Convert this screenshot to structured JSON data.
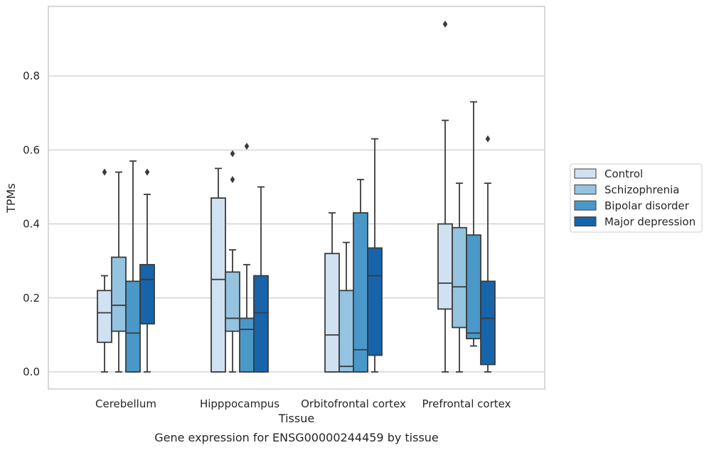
{
  "chart_data": {
    "type": "box",
    "xlabel": "Tissue",
    "ylabel": "TPMs",
    "caption": "Gene expression for ENSG00000244459 by tissue",
    "categories": [
      "Cerebellum",
      "Hipppocampus",
      "Orbitofrontal cortex",
      "Prefrontal cortex"
    ],
    "ylim": [
      -0.045,
      0.99
    ],
    "yticks": [
      "0.0",
      "0.2",
      "0.4",
      "0.6",
      "0.8"
    ],
    "grid": true,
    "legend_position": "right",
    "series": [
      {
        "name": "Control",
        "color": "#d0e1f2",
        "boxes": [
          {
            "whislo": 0.0,
            "q1": 0.08,
            "med": 0.16,
            "q3": 0.22,
            "whishi": 0.26,
            "fliers": [
              0.54
            ]
          },
          {
            "whislo": 0.0,
            "q1": 0.0,
            "med": 0.25,
            "q3": 0.47,
            "whishi": 0.55,
            "fliers": []
          },
          {
            "whislo": 0.0,
            "q1": 0.0,
            "med": 0.1,
            "q3": 0.32,
            "whishi": 0.43,
            "fliers": []
          },
          {
            "whislo": 0.0,
            "q1": 0.17,
            "med": 0.24,
            "q3": 0.4,
            "whishi": 0.68,
            "fliers": [
              0.94
            ]
          }
        ]
      },
      {
        "name": "Schizophrenia",
        "color": "#94c4df",
        "boxes": [
          {
            "whislo": 0.0,
            "q1": 0.11,
            "med": 0.18,
            "q3": 0.31,
            "whishi": 0.54,
            "fliers": []
          },
          {
            "whislo": 0.0,
            "q1": 0.11,
            "med": 0.145,
            "q3": 0.27,
            "whishi": 0.33,
            "fliers": [
              0.52,
              0.59
            ]
          },
          {
            "whislo": 0.0,
            "q1": 0.0,
            "med": 0.015,
            "q3": 0.22,
            "whishi": 0.35,
            "fliers": []
          },
          {
            "whislo": 0.0,
            "q1": 0.12,
            "med": 0.23,
            "q3": 0.39,
            "whishi": 0.51,
            "fliers": []
          }
        ]
      },
      {
        "name": "Bipolar disorder",
        "color": "#4a98c9",
        "boxes": [
          {
            "whislo": 0.0,
            "q1": 0.0,
            "med": 0.105,
            "q3": 0.245,
            "whishi": 0.57,
            "fliers": []
          },
          {
            "whislo": 0.0,
            "q1": 0.0,
            "med": 0.115,
            "q3": 0.145,
            "whishi": 0.29,
            "fliers": [
              0.61
            ]
          },
          {
            "whislo": 0.0,
            "q1": 0.0,
            "med": 0.06,
            "q3": 0.43,
            "whishi": 0.52,
            "fliers": []
          },
          {
            "whislo": 0.07,
            "q1": 0.09,
            "med": 0.105,
            "q3": 0.37,
            "whishi": 0.73,
            "fliers": []
          }
        ]
      },
      {
        "name": "Major depression",
        "color": "#1764ab",
        "boxes": [
          {
            "whislo": 0.0,
            "q1": 0.13,
            "med": 0.25,
            "q3": 0.29,
            "whishi": 0.48,
            "fliers": [
              0.54
            ]
          },
          {
            "whislo": 0.0,
            "q1": 0.0,
            "med": 0.16,
            "q3": 0.26,
            "whishi": 0.5,
            "fliers": []
          },
          {
            "whislo": 0.0,
            "q1": 0.045,
            "med": 0.26,
            "q3": 0.335,
            "whishi": 0.63,
            "fliers": []
          },
          {
            "whislo": 0.0,
            "q1": 0.02,
            "med": 0.145,
            "q3": 0.245,
            "whishi": 0.51,
            "fliers": [
              0.63
            ]
          }
        ]
      }
    ]
  }
}
